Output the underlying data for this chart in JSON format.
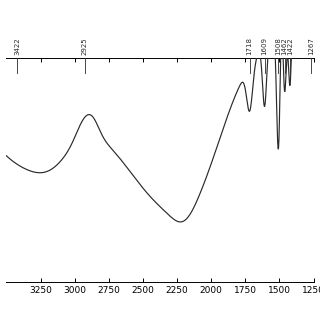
{
  "background_color": "#ffffff",
  "line_color": "#2a2a2a",
  "annotation_color": "#2a2a2a",
  "peaks": [
    3422,
    2925,
    1718,
    1609,
    1508,
    1462,
    1422,
    1267
  ],
  "xticks": [
    3250,
    3000,
    2750,
    2500,
    2250,
    2000,
    1750,
    1500,
    1250
  ],
  "xmin": 1250,
  "xmax": 3500
}
